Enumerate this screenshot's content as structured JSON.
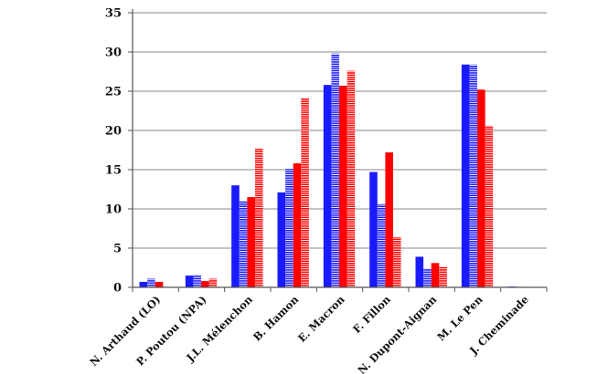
{
  "chart_data": {
    "type": "bar",
    "title": "",
    "xlabel": "",
    "ylabel": "",
    "ylim": [
      0,
      35
    ],
    "yticks": [
      0,
      5,
      10,
      15,
      20,
      25,
      30,
      35
    ],
    "grid": true,
    "legend": "none",
    "categories": [
      "N. Arthaud (LO)",
      "P. Poutou (NPA)",
      "J.L. Mélenchon",
      "B. Hamon",
      "E. Macron",
      "F. Fillon",
      "N. Dupont-Aignan",
      "M. Le Pen",
      "J. Cheminade"
    ],
    "series": [
      {
        "values": [
          0.7,
          1.5,
          13.0,
          12.1,
          25.8,
          14.7,
          3.9,
          28.4,
          0.1
        ],
        "color": "#1a1aff",
        "pattern": "solid"
      },
      {
        "values": [
          1.1,
          1.6,
          11.0,
          15.1,
          29.8,
          10.6,
          2.4,
          28.4,
          0.1
        ],
        "color": "#1a1aff",
        "pattern": "striped"
      },
      {
        "values": [
          0.7,
          0.8,
          11.5,
          15.8,
          25.7,
          17.2,
          3.1,
          25.2,
          0.0
        ],
        "color": "#ff0000",
        "pattern": "solid"
      },
      {
        "values": [
          0.0,
          1.1,
          17.7,
          24.1,
          27.6,
          6.4,
          2.6,
          20.6,
          0.0
        ],
        "color": "#ff0000",
        "pattern": "striped"
      }
    ]
  }
}
